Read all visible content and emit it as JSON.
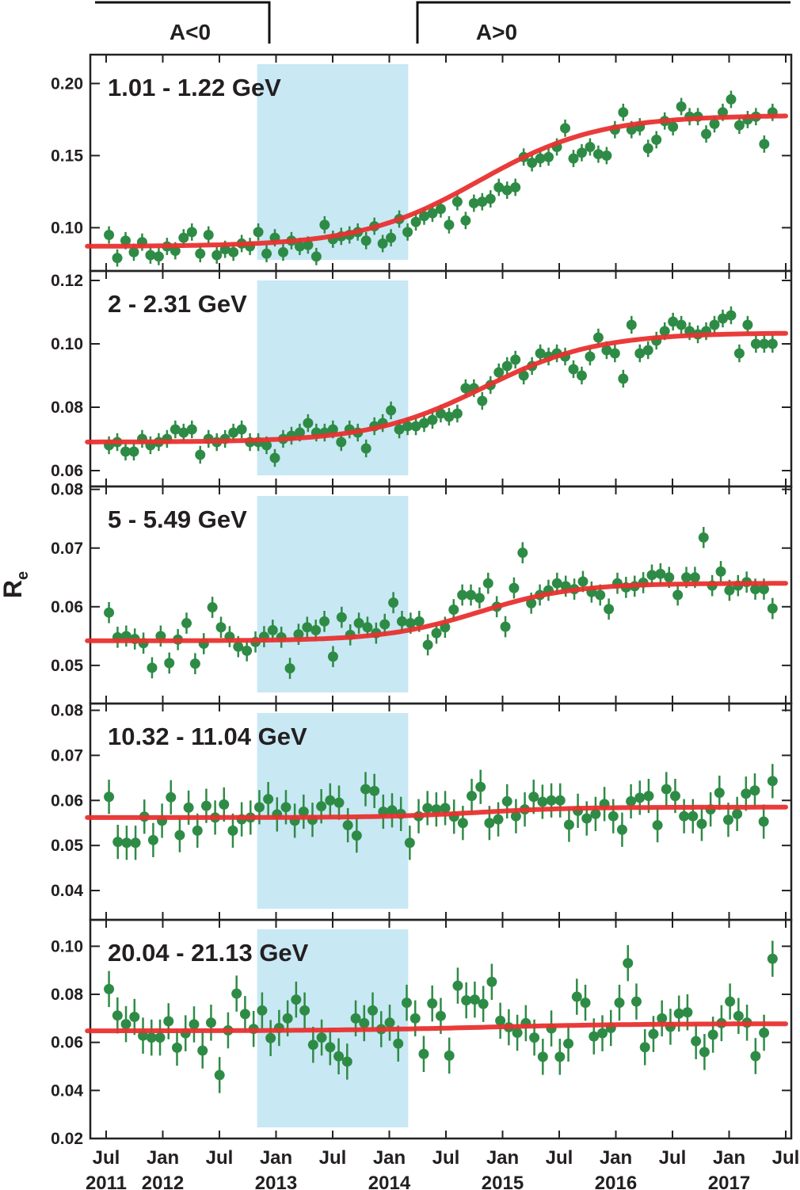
{
  "chart_data": {
    "type": "scatter",
    "ylabel": "R",
    "ylabel_sub": "e",
    "polarity_labels": [
      "A<0",
      "A>0"
    ],
    "polarity_reversal_period": [
      "Nov 2012",
      "Mar 2014"
    ],
    "x_axis": {
      "range": [
        "May 2011",
        "Jul 2017"
      ],
      "ticks": [
        {
          "date": "2011-07",
          "label": "Jul",
          "year": "2011"
        },
        {
          "date": "2012-01",
          "label": "Jan",
          "year": "2012"
        },
        {
          "date": "2012-07",
          "label": "Jul",
          "year": ""
        },
        {
          "date": "2013-01",
          "label": "Jan",
          "year": "2013"
        },
        {
          "date": "2013-07",
          "label": "Jul",
          "year": ""
        },
        {
          "date": "2014-01",
          "label": "Jan",
          "year": "2014"
        },
        {
          "date": "2014-07",
          "label": "Jul",
          "year": ""
        },
        {
          "date": "2015-01",
          "label": "Jan",
          "year": "2015"
        },
        {
          "date": "2015-07",
          "label": "Jul",
          "year": ""
        },
        {
          "date": "2016-01",
          "label": "Jan",
          "year": "2016"
        },
        {
          "date": "2016-07",
          "label": "Jul",
          "year": ""
        },
        {
          "date": "2017-01",
          "label": "Jan",
          "year": "2017"
        },
        {
          "date": "2017-07",
          "label": "Jul",
          "year": ""
        }
      ]
    },
    "colors": {
      "points": "#2e8b45",
      "fit": "#e8312f",
      "band": "#c8e8f4"
    },
    "panels": [
      {
        "label": "1.01 - 1.22 GeV",
        "ylim": [
          0.07,
          0.22
        ],
        "yticks": [
          0.1,
          0.15,
          0.2
        ],
        "ytick_labels": [
          "0.10",
          "0.15",
          "0.20"
        ],
        "fit": {
          "low": 0.087,
          "high": 0.178,
          "mid_months": 45.5,
          "width_months": 6.3
        },
        "errors": 0.006,
        "values": [
          0.095,
          0.079,
          0.091,
          0.083,
          0.09,
          0.081,
          0.08,
          0.087,
          0.084,
          0.093,
          0.097,
          0.082,
          0.095,
          0.081,
          0.085,
          0.083,
          0.089,
          0.087,
          0.097,
          0.082,
          0.093,
          0.083,
          0.091,
          0.087,
          0.088,
          0.08,
          0.102,
          0.092,
          0.094,
          0.095,
          0.097,
          0.091,
          0.101,
          0.089,
          0.093,
          0.106,
          0.097,
          0.104,
          0.108,
          0.11,
          0.113,
          0.102,
          0.118,
          0.105,
          0.117,
          0.118,
          0.12,
          0.128,
          0.126,
          0.128,
          0.149,
          0.145,
          0.148,
          0.149,
          0.156,
          0.169,
          0.148,
          0.152,
          0.156,
          0.151,
          0.15,
          0.168,
          0.18,
          0.168,
          0.17,
          0.155,
          0.161,
          0.174,
          0.17,
          0.184,
          0.177,
          0.177,
          0.165,
          0.172,
          0.18,
          0.189,
          0.171,
          0.175,
          0.177,
          0.158,
          0.18
        ]
      },
      {
        "label": "2 - 2.31 GeV",
        "ylim": [
          0.055,
          0.123
        ],
        "yticks": [
          0.06,
          0.08,
          0.1,
          0.12
        ],
        "ytick_labels": [
          "0.06",
          "0.08",
          "0.10",
          "0.12"
        ],
        "fit": {
          "low": 0.069,
          "high": 0.1035,
          "mid_months": 46.0,
          "width_months": 6.0
        },
        "errors": 0.0028,
        "values": [
          0.068,
          0.069,
          0.066,
          0.066,
          0.07,
          0.068,
          0.069,
          0.07,
          0.073,
          0.072,
          0.073,
          0.065,
          0.07,
          0.069,
          0.07,
          0.072,
          0.073,
          0.069,
          0.069,
          0.068,
          0.064,
          0.07,
          0.071,
          0.072,
          0.075,
          0.072,
          0.072,
          0.073,
          0.069,
          0.073,
          0.072,
          0.067,
          0.074,
          0.075,
          0.079,
          0.073,
          0.074,
          0.074,
          0.075,
          0.076,
          0.078,
          0.077,
          0.078,
          0.086,
          0.086,
          0.082,
          0.087,
          0.091,
          0.093,
          0.095,
          0.09,
          0.093,
          0.097,
          0.096,
          0.097,
          0.096,
          0.092,
          0.09,
          0.096,
          0.102,
          0.098,
          0.097,
          0.089,
          0.106,
          0.097,
          0.098,
          0.101,
          0.104,
          0.107,
          0.106,
          0.104,
          0.103,
          0.104,
          0.106,
          0.108,
          0.109,
          0.097,
          0.106,
          0.1,
          0.1,
          0.1
        ]
      },
      {
        "label": "5 - 5.49 GeV",
        "ylim": [
          0.0435,
          0.0805
        ],
        "yticks": [
          0.05,
          0.06,
          0.07,
          0.08
        ],
        "ytick_labels": [
          "0.05",
          "0.06",
          "0.07",
          "0.08"
        ],
        "fit": {
          "low": 0.0542,
          "high": 0.064,
          "mid_months": 45.5,
          "width_months": 5.0
        },
        "errors": 0.0018,
        "values": [
          0.059,
          0.0548,
          0.055,
          0.0545,
          0.0538,
          0.0496,
          0.055,
          0.0504,
          0.0544,
          0.0572,
          0.0503,
          0.0537,
          0.0599,
          0.0565,
          0.0549,
          0.0532,
          0.0525,
          0.054,
          0.0549,
          0.056,
          0.0548,
          0.0495,
          0.0553,
          0.0565,
          0.056,
          0.0575,
          0.0515,
          0.0582,
          0.0552,
          0.0572,
          0.0565,
          0.0555,
          0.057,
          0.0607,
          0.0575,
          0.0572,
          0.0575,
          0.0535,
          0.0555,
          0.0565,
          0.0595,
          0.062,
          0.062,
          0.0615,
          0.064,
          0.06,
          0.0566,
          0.0632,
          0.0692,
          0.0606,
          0.062,
          0.0628,
          0.064,
          0.0635,
          0.063,
          0.0643,
          0.0625,
          0.062,
          0.0596,
          0.064,
          0.0633,
          0.0635,
          0.0641,
          0.0654,
          0.0656,
          0.065,
          0.062,
          0.065,
          0.065,
          0.0718,
          0.0636,
          0.066,
          0.0628,
          0.0636,
          0.0642,
          0.063,
          0.063,
          0.0597
        ]
      },
      {
        "label": "10.32 - 11.04 GeV",
        "ylim": [
          0.0335,
          0.0815
        ],
        "yticks": [
          0.04,
          0.05,
          0.06,
          0.07,
          0.08
        ],
        "ytick_labels": [
          "0.04",
          "0.05",
          "0.06",
          "0.07",
          "0.08"
        ],
        "fit": {
          "low": 0.0562,
          "high": 0.0585,
          "mid_months": 45.5,
          "width_months": 5.0
        },
        "errors": 0.0038,
        "values": [
          0.0608,
          0.0508,
          0.0506,
          0.0506,
          0.0564,
          0.0512,
          0.0555,
          0.0607,
          0.0523,
          0.0584,
          0.0533,
          0.0588,
          0.0562,
          0.0591,
          0.0533,
          0.0558,
          0.0562,
          0.0585,
          0.0603,
          0.0569,
          0.0585,
          0.0555,
          0.0575,
          0.0557,
          0.0587,
          0.06,
          0.0595,
          0.0545,
          0.0522,
          0.0625,
          0.0621,
          0.0575,
          0.0578,
          0.057,
          0.0506,
          0.0565,
          0.0583,
          0.058,
          0.0583,
          0.0564,
          0.055,
          0.061,
          0.063,
          0.055,
          0.0558,
          0.0598,
          0.0565,
          0.058,
          0.0608,
          0.0597,
          0.06,
          0.06,
          0.0546,
          0.0577,
          0.056,
          0.057,
          0.0592,
          0.0565,
          0.0535,
          0.0598,
          0.0606,
          0.061,
          0.0545,
          0.0625,
          0.061,
          0.0565,
          0.0565,
          0.0548,
          0.058,
          0.0617,
          0.0557,
          0.057,
          0.0615,
          0.0622,
          0.0553,
          0.0643
        ]
      },
      {
        "label": "20.04 - 21.13 GeV",
        "ylim": [
          0.02,
          0.111
        ],
        "yticks": [
          0.02,
          0.04,
          0.06,
          0.08,
          0.1
        ],
        "ytick_labels": [
          "0.02",
          "0.04",
          "0.06",
          "0.08",
          "0.10"
        ],
        "fit": {
          "low": 0.0648,
          "high": 0.0678,
          "mid_months": 46.0,
          "width_months": 8.0
        },
        "errors": 0.0075,
        "values": [
          0.0822,
          0.0712,
          0.0676,
          0.0706,
          0.0628,
          0.062,
          0.062,
          0.0688,
          0.0578,
          0.0638,
          0.0675,
          0.0566,
          0.0682,
          0.0464,
          0.065,
          0.0803,
          0.0718,
          0.0656,
          0.0733,
          0.0618,
          0.066,
          0.07,
          0.0778,
          0.0733,
          0.059,
          0.062,
          0.058,
          0.0542,
          0.052,
          0.07,
          0.068,
          0.0733,
          0.0655,
          0.0682,
          0.0595,
          0.0765,
          0.07,
          0.0552,
          0.0762,
          0.071,
          0.0545,
          0.0836,
          0.0775,
          0.0778,
          0.076,
          0.0852,
          0.069,
          0.0663,
          0.064,
          0.068,
          0.062,
          0.054,
          0.0658,
          0.054,
          0.0595,
          0.079,
          0.0765,
          0.0625,
          0.0638,
          0.066,
          0.0765,
          0.093,
          0.077,
          0.058,
          0.0635,
          0.07,
          0.0665,
          0.072,
          0.0725,
          0.0605,
          0.056,
          0.0632,
          0.068,
          0.077,
          0.071,
          0.0682,
          0.0543,
          0.064,
          0.0948
        ]
      }
    ]
  }
}
